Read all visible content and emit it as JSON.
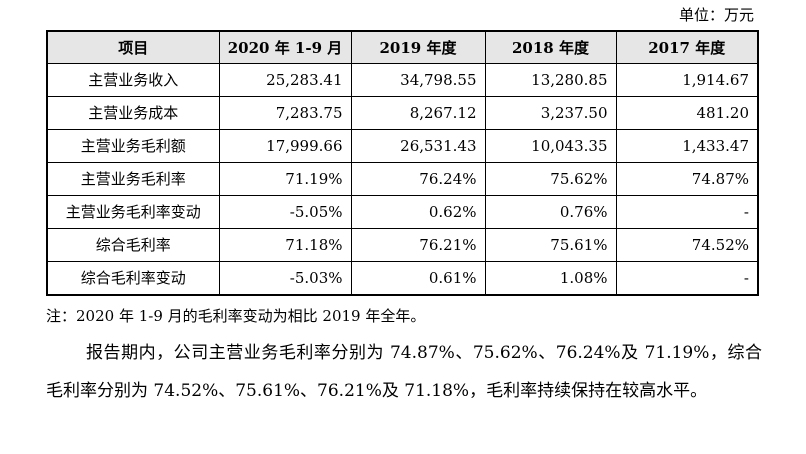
{
  "unit": "单位：万元",
  "table": {
    "headers": [
      "项目",
      "2020 年 1-9 月",
      "2019 年度",
      "2018 年度",
      "2017 年度"
    ],
    "rows": [
      {
        "item": "主营业务收入",
        "values": [
          "25,283.41",
          "34,798.55",
          "13,280.85",
          "1,914.67"
        ]
      },
      {
        "item": "主营业务成本",
        "values": [
          "7,283.75",
          "8,267.12",
          "3,237.50",
          "481.20"
        ]
      },
      {
        "item": "主营业务毛利额",
        "values": [
          "17,999.66",
          "26,531.43",
          "10,043.35",
          "1,433.47"
        ]
      },
      {
        "item": "主营业务毛利率",
        "values": [
          "71.19%",
          "76.24%",
          "75.62%",
          "74.87%"
        ]
      },
      {
        "item": "主营业务毛利率变动",
        "values": [
          "-5.05%",
          "0.62%",
          "0.76%",
          "-"
        ]
      },
      {
        "item": "综合毛利率",
        "values": [
          "71.18%",
          "76.21%",
          "75.61%",
          "74.52%"
        ]
      },
      {
        "item": "综合毛利率变动",
        "values": [
          "-5.03%",
          "0.61%",
          "1.08%",
          "-"
        ]
      }
    ]
  },
  "note": "注：2020 年 1-9 月的毛利率变动为相比 2019 年全年。",
  "paragraph": "报告期内，公司主营业务毛利率分别为 74.87%、75.62%、76.24%及 71.19%，综合毛利率分别为 74.52%、75.61%、76.21%及 71.18%，毛利率持续保持在较高水平。"
}
